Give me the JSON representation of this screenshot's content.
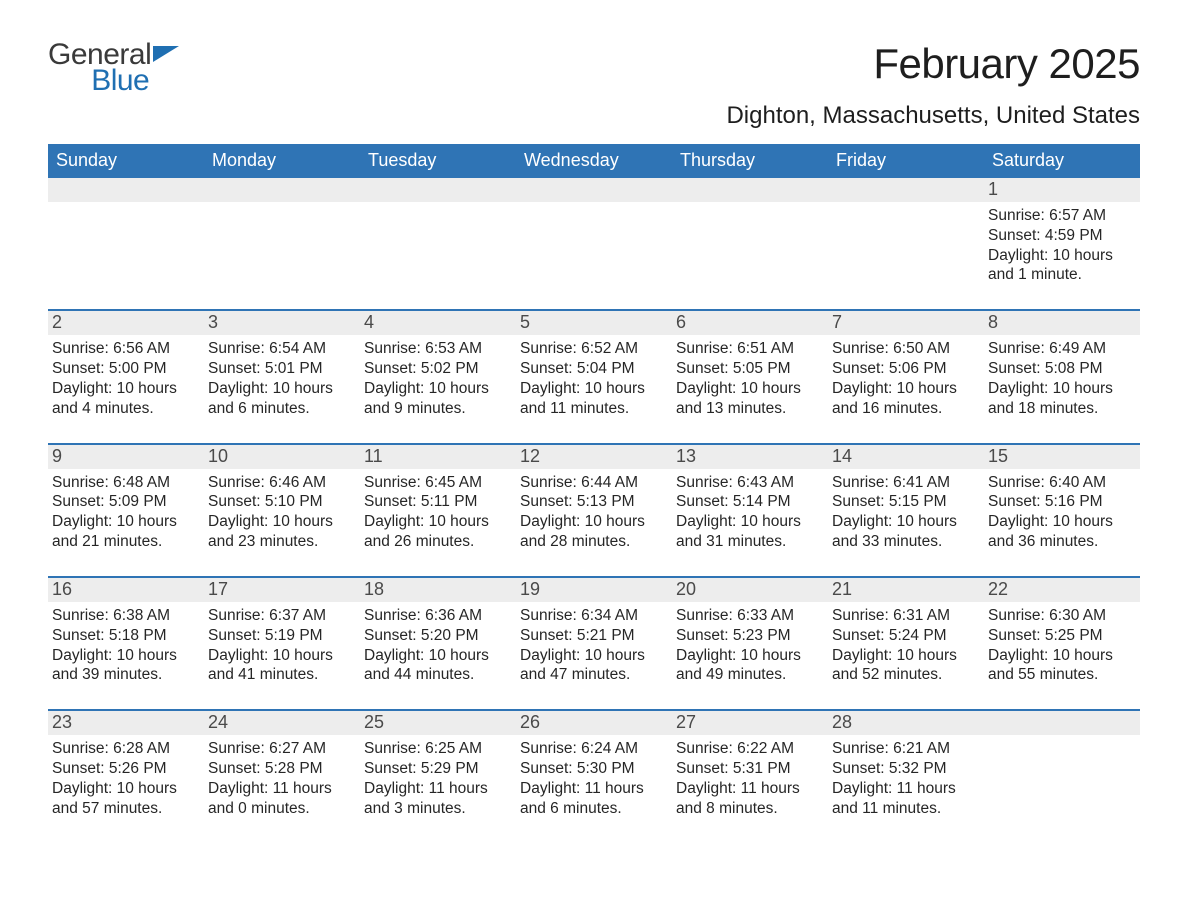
{
  "brand": {
    "word1": "General",
    "word2": "Blue",
    "brand_color": "#1f6fb2",
    "flag_color": "#1f6fb2"
  },
  "title": "February 2025",
  "location": "Dighton, Massachusetts, United States",
  "header_bg": "#2f74b5",
  "header_fg": "#ffffff",
  "daynum_bg": "#ededed",
  "border_color": "#2f74b5",
  "days_of_week": [
    "Sunday",
    "Monday",
    "Tuesday",
    "Wednesday",
    "Thursday",
    "Friday",
    "Saturday"
  ],
  "weeks": [
    [
      null,
      null,
      null,
      null,
      null,
      null,
      {
        "n": "1",
        "sunrise": "Sunrise: 6:57 AM",
        "sunset": "Sunset: 4:59 PM",
        "day1": "Daylight: 10 hours",
        "day2": "and 1 minute."
      }
    ],
    [
      {
        "n": "2",
        "sunrise": "Sunrise: 6:56 AM",
        "sunset": "Sunset: 5:00 PM",
        "day1": "Daylight: 10 hours",
        "day2": "and 4 minutes."
      },
      {
        "n": "3",
        "sunrise": "Sunrise: 6:54 AM",
        "sunset": "Sunset: 5:01 PM",
        "day1": "Daylight: 10 hours",
        "day2": "and 6 minutes."
      },
      {
        "n": "4",
        "sunrise": "Sunrise: 6:53 AM",
        "sunset": "Sunset: 5:02 PM",
        "day1": "Daylight: 10 hours",
        "day2": "and 9 minutes."
      },
      {
        "n": "5",
        "sunrise": "Sunrise: 6:52 AM",
        "sunset": "Sunset: 5:04 PM",
        "day1": "Daylight: 10 hours",
        "day2": "and 11 minutes."
      },
      {
        "n": "6",
        "sunrise": "Sunrise: 6:51 AM",
        "sunset": "Sunset: 5:05 PM",
        "day1": "Daylight: 10 hours",
        "day2": "and 13 minutes."
      },
      {
        "n": "7",
        "sunrise": "Sunrise: 6:50 AM",
        "sunset": "Sunset: 5:06 PM",
        "day1": "Daylight: 10 hours",
        "day2": "and 16 minutes."
      },
      {
        "n": "8",
        "sunrise": "Sunrise: 6:49 AM",
        "sunset": "Sunset: 5:08 PM",
        "day1": "Daylight: 10 hours",
        "day2": "and 18 minutes."
      }
    ],
    [
      {
        "n": "9",
        "sunrise": "Sunrise: 6:48 AM",
        "sunset": "Sunset: 5:09 PM",
        "day1": "Daylight: 10 hours",
        "day2": "and 21 minutes."
      },
      {
        "n": "10",
        "sunrise": "Sunrise: 6:46 AM",
        "sunset": "Sunset: 5:10 PM",
        "day1": "Daylight: 10 hours",
        "day2": "and 23 minutes."
      },
      {
        "n": "11",
        "sunrise": "Sunrise: 6:45 AM",
        "sunset": "Sunset: 5:11 PM",
        "day1": "Daylight: 10 hours",
        "day2": "and 26 minutes."
      },
      {
        "n": "12",
        "sunrise": "Sunrise: 6:44 AM",
        "sunset": "Sunset: 5:13 PM",
        "day1": "Daylight: 10 hours",
        "day2": "and 28 minutes."
      },
      {
        "n": "13",
        "sunrise": "Sunrise: 6:43 AM",
        "sunset": "Sunset: 5:14 PM",
        "day1": "Daylight: 10 hours",
        "day2": "and 31 minutes."
      },
      {
        "n": "14",
        "sunrise": "Sunrise: 6:41 AM",
        "sunset": "Sunset: 5:15 PM",
        "day1": "Daylight: 10 hours",
        "day2": "and 33 minutes."
      },
      {
        "n": "15",
        "sunrise": "Sunrise: 6:40 AM",
        "sunset": "Sunset: 5:16 PM",
        "day1": "Daylight: 10 hours",
        "day2": "and 36 minutes."
      }
    ],
    [
      {
        "n": "16",
        "sunrise": "Sunrise: 6:38 AM",
        "sunset": "Sunset: 5:18 PM",
        "day1": "Daylight: 10 hours",
        "day2": "and 39 minutes."
      },
      {
        "n": "17",
        "sunrise": "Sunrise: 6:37 AM",
        "sunset": "Sunset: 5:19 PM",
        "day1": "Daylight: 10 hours",
        "day2": "and 41 minutes."
      },
      {
        "n": "18",
        "sunrise": "Sunrise: 6:36 AM",
        "sunset": "Sunset: 5:20 PM",
        "day1": "Daylight: 10 hours",
        "day2": "and 44 minutes."
      },
      {
        "n": "19",
        "sunrise": "Sunrise: 6:34 AM",
        "sunset": "Sunset: 5:21 PM",
        "day1": "Daylight: 10 hours",
        "day2": "and 47 minutes."
      },
      {
        "n": "20",
        "sunrise": "Sunrise: 6:33 AM",
        "sunset": "Sunset: 5:23 PM",
        "day1": "Daylight: 10 hours",
        "day2": "and 49 minutes."
      },
      {
        "n": "21",
        "sunrise": "Sunrise: 6:31 AM",
        "sunset": "Sunset: 5:24 PM",
        "day1": "Daylight: 10 hours",
        "day2": "and 52 minutes."
      },
      {
        "n": "22",
        "sunrise": "Sunrise: 6:30 AM",
        "sunset": "Sunset: 5:25 PM",
        "day1": "Daylight: 10 hours",
        "day2": "and 55 minutes."
      }
    ],
    [
      {
        "n": "23",
        "sunrise": "Sunrise: 6:28 AM",
        "sunset": "Sunset: 5:26 PM",
        "day1": "Daylight: 10 hours",
        "day2": "and 57 minutes."
      },
      {
        "n": "24",
        "sunrise": "Sunrise: 6:27 AM",
        "sunset": "Sunset: 5:28 PM",
        "day1": "Daylight: 11 hours",
        "day2": "and 0 minutes."
      },
      {
        "n": "25",
        "sunrise": "Sunrise: 6:25 AM",
        "sunset": "Sunset: 5:29 PM",
        "day1": "Daylight: 11 hours",
        "day2": "and 3 minutes."
      },
      {
        "n": "26",
        "sunrise": "Sunrise: 6:24 AM",
        "sunset": "Sunset: 5:30 PM",
        "day1": "Daylight: 11 hours",
        "day2": "and 6 minutes."
      },
      {
        "n": "27",
        "sunrise": "Sunrise: 6:22 AM",
        "sunset": "Sunset: 5:31 PM",
        "day1": "Daylight: 11 hours",
        "day2": "and 8 minutes."
      },
      {
        "n": "28",
        "sunrise": "Sunrise: 6:21 AM",
        "sunset": "Sunset: 5:32 PM",
        "day1": "Daylight: 11 hours",
        "day2": "and 11 minutes."
      },
      null
    ]
  ]
}
